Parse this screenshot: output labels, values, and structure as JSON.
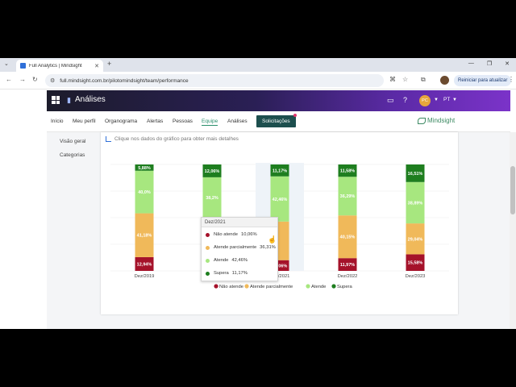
{
  "browser": {
    "tab_title": "Full Analytics | Mindsight",
    "url": "full.mindsight.com.br/pilotomindsight/team/performance",
    "restart_label": "Reiniciar para atualizar"
  },
  "app": {
    "title": "Análises",
    "avatar_initials": "PC",
    "language": "PT"
  },
  "nav": {
    "items": [
      "Início",
      "Meu perfil",
      "Organograma",
      "Alertas",
      "Pessoas",
      "Equipe",
      "Análises"
    ],
    "active": "Equipe",
    "requests_label": "Solicitações",
    "logo_text": "Mindsight"
  },
  "sidebar": {
    "items": [
      "Visão geral",
      "Categorias"
    ]
  },
  "card": {
    "hint": "Clique nos dados do gráfico para obter mais detalhes"
  },
  "colors": {
    "nao_atende": "#a5122a",
    "atende_parcialmente": "#f0b95a",
    "atende": "#a7e77f",
    "supera": "#1e7e1f",
    "accent": "#2a8f6c"
  },
  "chart_data": {
    "type": "bar",
    "stacked": true,
    "categories": [
      "Dez/2019",
      "Dez/2020",
      "Dez/2021",
      "Dez/2022",
      "Dez/2023"
    ],
    "series": [
      {
        "name": "Não atende",
        "values": [
          12.94,
          0,
          10.06,
          11.97,
          15.58
        ],
        "labels": [
          "12,94%",
          "",
          "10,06%",
          "11,97%",
          "15,58%"
        ]
      },
      {
        "name": "Atende parcialmente",
        "values": [
          41.18,
          50.0,
          36.31,
          40.15,
          29.04
        ],
        "labels": [
          "41,18%",
          "",
          "",
          "40,15%",
          "29,04%"
        ]
      },
      {
        "name": "Atende",
        "values": [
          40.0,
          38.2,
          42.46,
          36.29,
          38.89
        ],
        "labels": [
          "40,0%",
          "38,2%",
          "42,46%",
          "36,29%",
          "38,89%"
        ]
      },
      {
        "name": "Supera",
        "values": [
          5.88,
          12.06,
          11.17,
          11.58,
          16.51
        ],
        "labels": [
          "5,88%",
          "12,06%",
          "11,17%",
          "11,58%",
          "16,51%"
        ]
      }
    ],
    "ylim": [
      0,
      100
    ],
    "legend": "bottom",
    "grid": true,
    "highlighted_category": "Dez/2021",
    "tooltip": {
      "title": "Dez/2021",
      "rows": [
        {
          "label": "Não atende",
          "value": "10,06%"
        },
        {
          "label": "Atende parcialmente",
          "value": "36,31%"
        },
        {
          "label": "Atende",
          "value": "42,46%"
        },
        {
          "label": "Supera",
          "value": "11,17%"
        }
      ]
    }
  }
}
